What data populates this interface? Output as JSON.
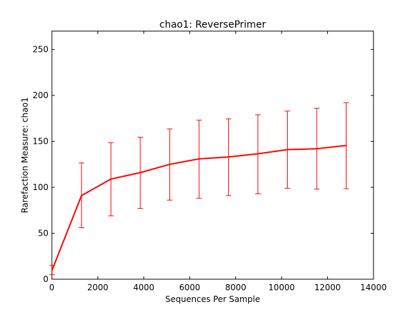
{
  "chart_data": {
    "type": "line",
    "title": "chao1: ReversePrimer",
    "xlabel": "Sequences Per Sample",
    "ylabel": "Rarefaction Measure: chao1",
    "xlim": [
      0,
      14000
    ],
    "ylim": [
      0,
      270
    ],
    "xticks": [
      0,
      2000,
      4000,
      6000,
      8000,
      10000,
      12000,
      14000
    ],
    "yticks": [
      0,
      50,
      100,
      150,
      200,
      250
    ],
    "grid": false,
    "legend": "none",
    "series_color": "#ff0000",
    "series": [
      {
        "x": [
          10,
          1290,
          2570,
          3850,
          5130,
          6410,
          7690,
          8970,
          10250,
          11530,
          12810
        ],
        "y": [
          10,
          91,
          109,
          116,
          125,
          131,
          133,
          136.5,
          141,
          142,
          145.5
        ],
        "err_low": [
          5,
          56,
          69,
          77,
          86,
          88,
          91,
          93,
          99,
          98,
          98.5
        ],
        "err_high": [
          15,
          126.5,
          148.5,
          154.5,
          163.5,
          173,
          174.5,
          179,
          183,
          186,
          192
        ]
      }
    ]
  }
}
